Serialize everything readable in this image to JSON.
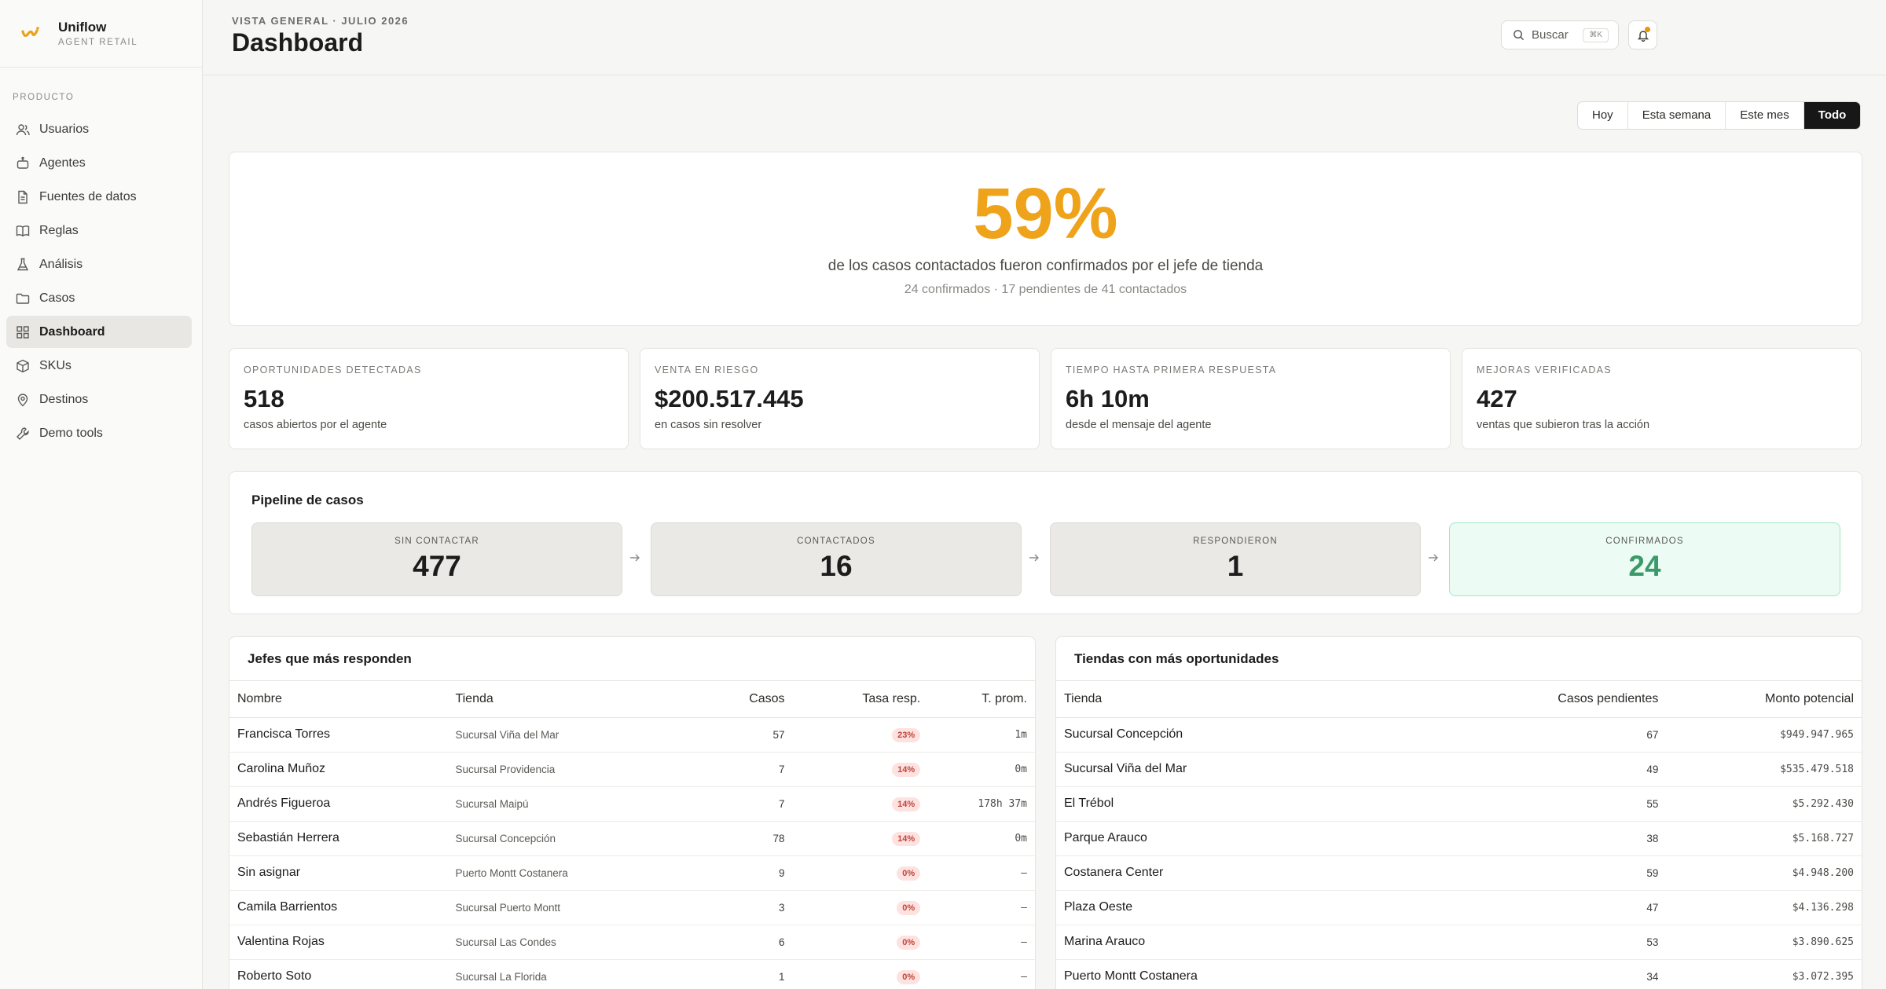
{
  "app": {
    "name": "Uniflow",
    "subtitle": "AGENT RETAIL"
  },
  "sidebar": {
    "section_label": "PRODUCTO",
    "items": [
      {
        "label": "Usuarios",
        "icon": "users-icon"
      },
      {
        "label": "Agentes",
        "icon": "bot-icon"
      },
      {
        "label": "Fuentes de datos",
        "icon": "file-icon"
      },
      {
        "label": "Reglas",
        "icon": "book-icon"
      },
      {
        "label": "Análisis",
        "icon": "flask-icon"
      },
      {
        "label": "Casos",
        "icon": "folder-icon"
      },
      {
        "label": "Dashboard",
        "icon": "grid-icon",
        "active": true
      },
      {
        "label": "SKUs",
        "icon": "box-icon"
      },
      {
        "label": "Destinos",
        "icon": "pin-icon"
      },
      {
        "label": "Demo tools",
        "icon": "wrench-icon"
      }
    ]
  },
  "header": {
    "eyebrow": "VISTA GENERAL · JULIO 2026",
    "title": "Dashboard",
    "search_label": "Buscar",
    "search_shortcut": "⌘K"
  },
  "filters": {
    "options": [
      "Hoy",
      "Esta semana",
      "Este mes",
      "Todo"
    ],
    "active": "Todo"
  },
  "hero": {
    "percent": "59%",
    "description": "de los casos contactados fueron confirmados por el jefe de tienda",
    "detail": "24 confirmados · 17 pendientes de 41 contactados"
  },
  "kpis": [
    {
      "label": "OPORTUNIDADES DETECTADAS",
      "value": "518",
      "note": "casos abiertos por el agente"
    },
    {
      "label": "VENTA EN RIESGO",
      "value": "$200.517.445",
      "note": "en casos sin resolver"
    },
    {
      "label": "TIEMPO HASTA PRIMERA RESPUESTA",
      "value": "6h 10m",
      "note": "desde el mensaje del agente"
    },
    {
      "label": "MEJORAS VERIFICADAS",
      "value": "427",
      "note": "ventas que subieron tras la acción"
    }
  ],
  "pipeline": {
    "title": "Pipeline de casos",
    "stages": [
      {
        "label": "SIN CONTACTAR",
        "value": "477"
      },
      {
        "label": "CONTACTADOS",
        "value": "16"
      },
      {
        "label": "RESPONDIERON",
        "value": "1"
      },
      {
        "label": "CONFIRMADOS",
        "value": "24"
      }
    ]
  },
  "managers": {
    "title": "Jefes que más responden",
    "columns": [
      "Nombre",
      "Tienda",
      "Casos",
      "Tasa resp.",
      "T. prom."
    ],
    "rows": [
      {
        "name": "Francisca Torres",
        "store": "Sucursal Viña del Mar",
        "cases": "57",
        "rate": "23%",
        "time": "1m"
      },
      {
        "name": "Carolina Muñoz",
        "store": "Sucursal Providencia",
        "cases": "7",
        "rate": "14%",
        "time": "0m"
      },
      {
        "name": "Andrés Figueroa",
        "store": "Sucursal Maipú",
        "cases": "7",
        "rate": "14%",
        "time": "178h 37m"
      },
      {
        "name": "Sebastián Herrera",
        "store": "Sucursal Concepción",
        "cases": "78",
        "rate": "14%",
        "time": "0m"
      },
      {
        "name": "Sin asignar",
        "store": "Puerto Montt Costanera",
        "cases": "9",
        "rate": "0%",
        "time": "–"
      },
      {
        "name": "Camila Barrientos",
        "store": "Sucursal Puerto Montt",
        "cases": "3",
        "rate": "0%",
        "time": "–"
      },
      {
        "name": "Valentina Rojas",
        "store": "Sucursal Las Condes",
        "cases": "6",
        "rate": "0%",
        "time": "–"
      },
      {
        "name": "Roberto Soto",
        "store": "Sucursal La Florida",
        "cases": "1",
        "rate": "0%",
        "time": "–"
      }
    ]
  },
  "stores": {
    "title": "Tiendas con más oportunidades",
    "columns": [
      "Tienda",
      "Casos pendientes",
      "Monto potencial"
    ],
    "rows": [
      {
        "store": "Sucursal Concepción",
        "pending": "67",
        "amount": "$949.947.965"
      },
      {
        "store": "Sucursal Viña del Mar",
        "pending": "49",
        "amount": "$535.479.518"
      },
      {
        "store": "El Trébol",
        "pending": "55",
        "amount": "$5.292.430"
      },
      {
        "store": "Parque Arauco",
        "pending": "38",
        "amount": "$5.168.727"
      },
      {
        "store": "Costanera Center",
        "pending": "59",
        "amount": "$4.948.200"
      },
      {
        "store": "Plaza Oeste",
        "pending": "47",
        "amount": "$4.136.298"
      },
      {
        "store": "Marina Arauco",
        "pending": "53",
        "amount": "$3.890.625"
      },
      {
        "store": "Puerto Montt Costanera",
        "pending": "34",
        "amount": "$3.072.395"
      }
    ]
  },
  "colors": {
    "accent": "#eea31a",
    "confirmed": "#3a9a6a",
    "pill_bg": "#fde2e0",
    "pill_text": "#c0453a"
  }
}
